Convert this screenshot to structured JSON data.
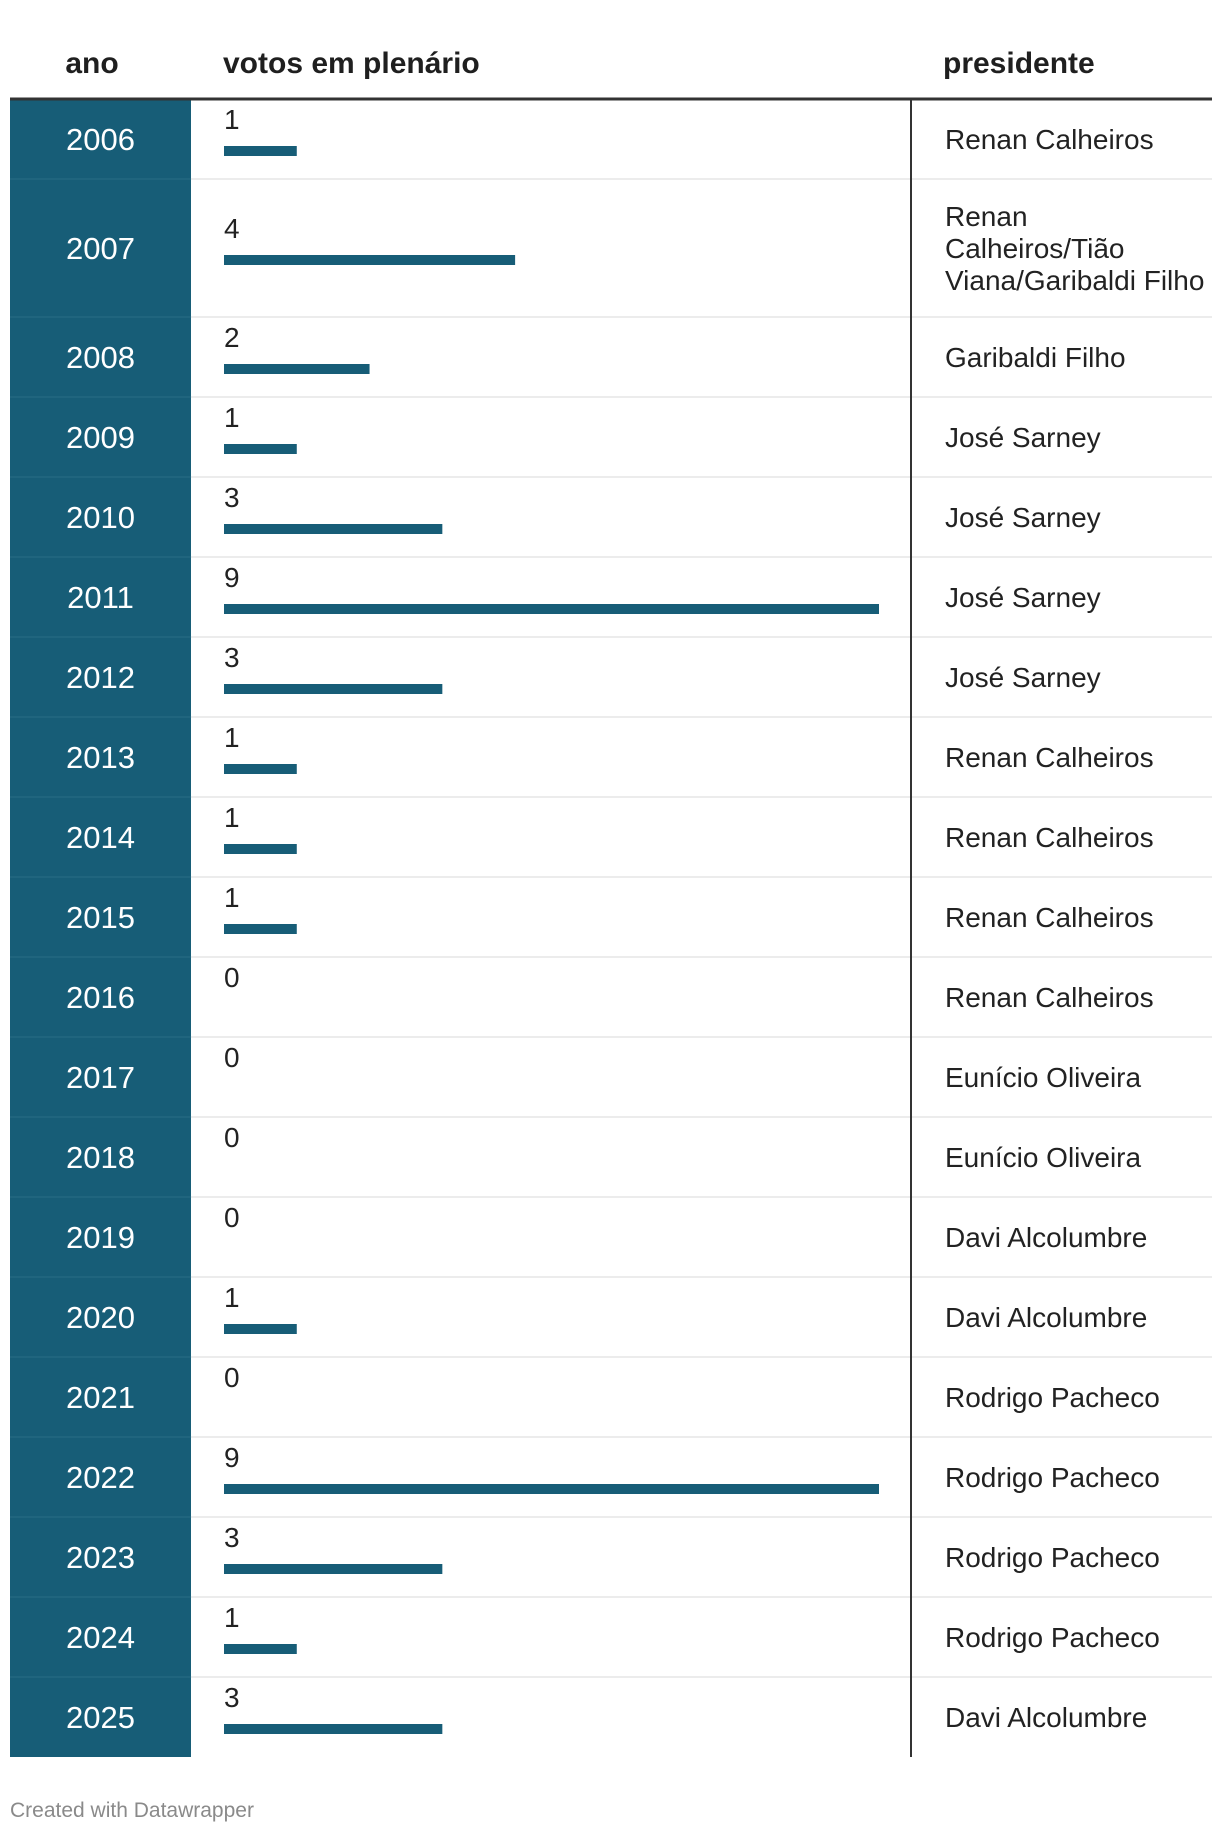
{
  "chart_data": {
    "type": "table",
    "columns": [
      "ano",
      "votos em plenário",
      "presidente"
    ],
    "bar_max": 9,
    "colors": {
      "accent": "#175d77",
      "header_rule": "#333333",
      "row_rule": "#e6e6e6",
      "divider": "#333333"
    },
    "rows": [
      {
        "year": "2006",
        "votes": 1,
        "president": "Renan Calheiros"
      },
      {
        "year": "2007",
        "votes": 4,
        "president": "Renan Calheiros/Tião Viana/Garibaldi Filho",
        "president_lines": [
          "Renan",
          "Calheiros/Tião",
          "Viana/Garibaldi Filho"
        ]
      },
      {
        "year": "2008",
        "votes": 2,
        "president": "Garibaldi Filho"
      },
      {
        "year": "2009",
        "votes": 1,
        "president": "José Sarney"
      },
      {
        "year": "2010",
        "votes": 3,
        "president": "José Sarney"
      },
      {
        "year": "2011",
        "votes": 9,
        "president": "José Sarney"
      },
      {
        "year": "2012",
        "votes": 3,
        "president": "José Sarney"
      },
      {
        "year": "2013",
        "votes": 1,
        "president": "Renan Calheiros"
      },
      {
        "year": "2014",
        "votes": 1,
        "president": "Renan Calheiros"
      },
      {
        "year": "2015",
        "votes": 1,
        "president": "Renan Calheiros"
      },
      {
        "year": "2016",
        "votes": 0,
        "president": "Renan Calheiros"
      },
      {
        "year": "2017",
        "votes": 0,
        "president": "Eunício Oliveira"
      },
      {
        "year": "2018",
        "votes": 0,
        "president": "Eunício Oliveira"
      },
      {
        "year": "2019",
        "votes": 0,
        "president": "Davi Alcolumbre"
      },
      {
        "year": "2020",
        "votes": 1,
        "president": "Davi Alcolumbre"
      },
      {
        "year": "2021",
        "votes": 0,
        "president": "Rodrigo Pacheco"
      },
      {
        "year": "2022",
        "votes": 9,
        "president": "Rodrigo Pacheco"
      },
      {
        "year": "2023",
        "votes": 3,
        "president": "Rodrigo Pacheco"
      },
      {
        "year": "2024",
        "votes": 1,
        "president": "Rodrigo Pacheco"
      },
      {
        "year": "2025",
        "votes": 3,
        "president": "Davi Alcolumbre"
      }
    ]
  },
  "footer": "Created with Datawrapper"
}
